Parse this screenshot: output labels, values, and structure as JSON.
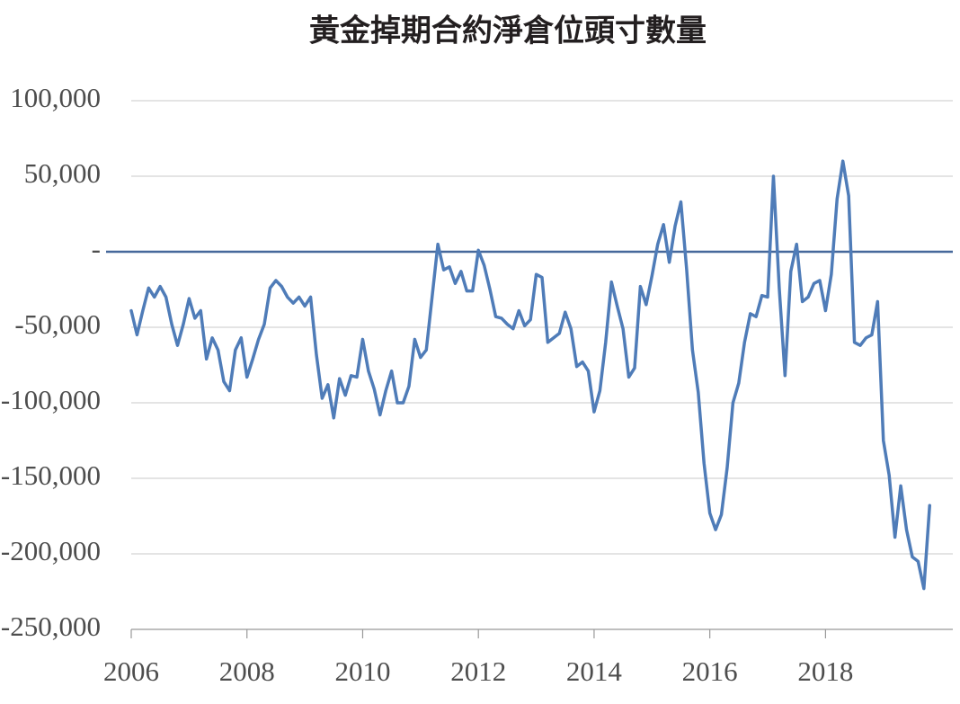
{
  "chart_data": {
    "type": "line",
    "title": "黃金掉期合約淨倉位頭寸數量",
    "color": "#4f7cb8",
    "zero_line_color": "#46689b",
    "grid": true,
    "xlim": [
      2006,
      2020.2
    ],
    "xticks": [
      2006,
      2008,
      2010,
      2012,
      2014,
      2016,
      2018
    ],
    "ylim": [
      -250000,
      100000
    ],
    "yticks": [
      {
        "value": 100000,
        "label": "100,000"
      },
      {
        "value": 50000,
        "label": "50,000"
      },
      {
        "value": 0,
        "label": "-"
      },
      {
        "value": -50000,
        "label": "-50,000"
      },
      {
        "value": -100000,
        "label": "-100,000"
      },
      {
        "value": -150000,
        "label": "-150,000"
      },
      {
        "value": -200000,
        "label": "-200,000"
      },
      {
        "value": -250000,
        "label": "-250,000"
      }
    ],
    "x": [
      2006.0,
      2006.1,
      2006.2,
      2006.3,
      2006.4,
      2006.5,
      2006.6,
      2006.7,
      2006.8,
      2006.9,
      2007.0,
      2007.1,
      2007.2,
      2007.3,
      2007.4,
      2007.5,
      2007.6,
      2007.7,
      2007.8,
      2007.9,
      2008.0,
      2008.1,
      2008.2,
      2008.3,
      2008.4,
      2008.5,
      2008.6,
      2008.7,
      2008.8,
      2008.9,
      2009.0,
      2009.1,
      2009.2,
      2009.3,
      2009.4,
      2009.5,
      2009.6,
      2009.7,
      2009.8,
      2009.9,
      2010.0,
      2010.1,
      2010.2,
      2010.3,
      2010.4,
      2010.5,
      2010.6,
      2010.7,
      2010.8,
      2010.9,
      2011.0,
      2011.1,
      2011.2,
      2011.3,
      2011.4,
      2011.5,
      2011.6,
      2011.7,
      2011.8,
      2011.9,
      2012.0,
      2012.1,
      2012.2,
      2012.3,
      2012.4,
      2012.5,
      2012.6,
      2012.7,
      2012.8,
      2012.9,
      2013.0,
      2013.1,
      2013.2,
      2013.3,
      2013.4,
      2013.5,
      2013.6,
      2013.7,
      2013.8,
      2013.9,
      2014.0,
      2014.1,
      2014.2,
      2014.3,
      2014.4,
      2014.5,
      2014.6,
      2014.7,
      2014.8,
      2014.9,
      2015.0,
      2015.1,
      2015.2,
      2015.3,
      2015.4,
      2015.5,
      2015.6,
      2015.7,
      2015.8,
      2015.9,
      2016.0,
      2016.1,
      2016.2,
      2016.3,
      2016.4,
      2016.5,
      2016.6,
      2016.7,
      2016.8,
      2016.9,
      2017.0,
      2017.1,
      2017.2,
      2017.3,
      2017.4,
      2017.5,
      2017.6,
      2017.7,
      2017.8,
      2017.9,
      2018.0,
      2018.1,
      2018.2,
      2018.3,
      2018.4,
      2018.5,
      2018.6,
      2018.7,
      2018.8,
      2018.9,
      2019.0,
      2019.1,
      2019.2,
      2019.3,
      2019.4,
      2019.5,
      2019.6,
      2019.7,
      2019.8
    ],
    "values": [
      -39000,
      -55000,
      -39000,
      -24000,
      -30000,
      -23000,
      -30000,
      -48000,
      -62000,
      -48000,
      -31000,
      -44000,
      -39000,
      -71000,
      -57000,
      -65000,
      -86000,
      -92000,
      -65000,
      -57000,
      -83000,
      -71000,
      -58000,
      -48000,
      -24000,
      -19000,
      -23000,
      -30000,
      -34000,
      -30000,
      -36000,
      -30000,
      -68000,
      -97000,
      -88000,
      -110000,
      -84000,
      -95000,
      -82000,
      -83000,
      -58000,
      -79000,
      -91000,
      -108000,
      -92000,
      -79000,
      -100000,
      -100000,
      -89000,
      -58000,
      -70000,
      -65000,
      -30000,
      5000,
      -12000,
      -10000,
      -21000,
      -13000,
      -26000,
      -26000,
      1000,
      -9000,
      -25000,
      -43000,
      -44000,
      -48000,
      -51000,
      -39000,
      -49000,
      -45000,
      -15000,
      -17000,
      -60000,
      -57000,
      -54000,
      -40000,
      -51000,
      -76000,
      -73000,
      -79000,
      -106000,
      -92000,
      -60000,
      -20000,
      -36000,
      -51000,
      -83000,
      -77000,
      -23000,
      -35000,
      -16000,
      5000,
      18000,
      -7000,
      17000,
      33000,
      -12000,
      -65000,
      -93000,
      -140000,
      -173000,
      -184000,
      -174000,
      -143000,
      -100000,
      -87000,
      -60000,
      -41000,
      -43000,
      -29000,
      -30000,
      50000,
      -24000,
      -82000,
      -13000,
      5000,
      -33000,
      -30000,
      -21000,
      -19000,
      -39000,
      -15000,
      35000,
      60000,
      37000,
      -60000,
      -62000,
      -57000,
      -55000,
      -33000,
      -125000,
      -148000,
      -189000,
      -155000,
      -184000,
      -202000,
      -205000,
      -223000,
      -168000
    ]
  }
}
